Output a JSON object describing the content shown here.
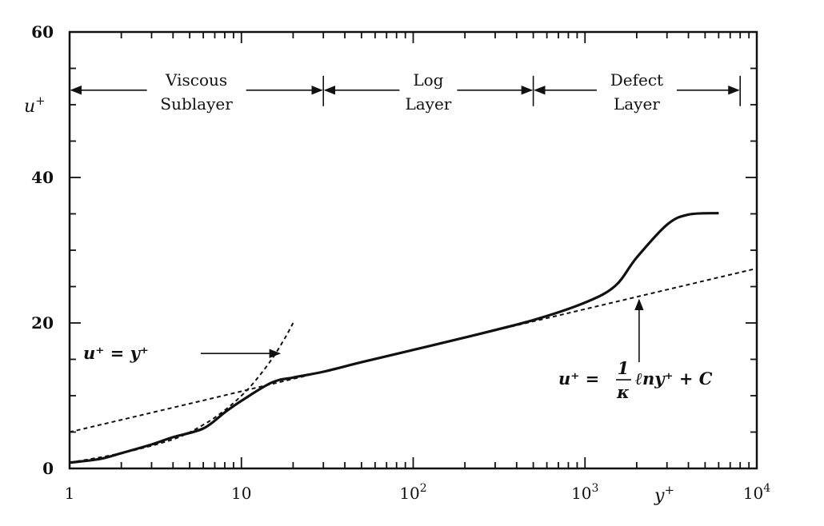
{
  "chart_data": {
    "type": "line",
    "xscale": "log",
    "xlim": [
      1,
      10000
    ],
    "ylim": [
      0,
      60
    ],
    "xlabel": "y+",
    "ylabel": "u+",
    "x_ticks": [
      {
        "value": 1,
        "label": "1"
      },
      {
        "value": 10,
        "label": "10"
      },
      {
        "value": 100,
        "label": "10",
        "exp": "2"
      },
      {
        "value": 1000,
        "label": "10",
        "exp": "3"
      },
      {
        "value": 10000,
        "label": "10",
        "exp": "4"
      }
    ],
    "y_ticks": [
      {
        "value": 0,
        "label": "0"
      },
      {
        "value": 20,
        "label": "20"
      },
      {
        "value": 40,
        "label": "40"
      },
      {
        "value": 60,
        "label": "60"
      }
    ],
    "regions": [
      {
        "label_line1": "Viscous",
        "label_line2": "Sublayer",
        "x_start": 1,
        "x_end": 30
      },
      {
        "label_line1": "Log",
        "label_line2": "Layer",
        "x_start": 30,
        "x_end": 500
      },
      {
        "label_line1": "Defect",
        "label_line2": "Layer",
        "x_start": 500,
        "x_end": 8000
      }
    ],
    "region_label_y": 52,
    "series": [
      {
        "style": "solid",
        "x": [
          1,
          1.5,
          2,
          3,
          4,
          6,
          8,
          10,
          15,
          20,
          30,
          50,
          100,
          200,
          500,
          1000,
          1500,
          2000,
          3000,
          4000,
          6000
        ],
        "y": [
          0.8,
          1.3,
          2.1,
          3.3,
          4.3,
          5.5,
          7.7,
          9.3,
          11.8,
          12.5,
          13.3,
          14.6,
          16.3,
          18.0,
          20.4,
          22.8,
          25.1,
          29.0,
          33.5,
          34.9,
          35.1
        ]
      },
      {
        "style": "dashed",
        "x": [
          1,
          2,
          4,
          6,
          8,
          10,
          12,
          15,
          18,
          20
        ],
        "y": [
          0.8,
          2.1,
          4.0,
          6.0,
          8.0,
          10.0,
          12.0,
          15.0,
          18.0,
          20.0
        ]
      },
      {
        "style": "dashed",
        "x": [
          1,
          10,
          100,
          1000,
          10000
        ],
        "y": [
          5.0,
          10.6,
          16.3,
          21.9,
          27.5
        ]
      }
    ],
    "annotations": [
      {
        "text": "u⁺ = y⁺",
        "x": 1.2,
        "y": 15.8,
        "arrow_from": [
          8,
          15.8
        ],
        "arrow_to": [
          15,
          15.8
        ]
      },
      {
        "prefix": "u⁺ =",
        "numerator": "1",
        "denominator": "κ",
        "suffix": "ℓny⁺ + C",
        "x": 700,
        "y": 12.3,
        "arrow_from": [
          2000,
          14.6
        ],
        "arrow_to": [
          2000,
          23.6
        ]
      }
    ],
    "grid": false
  }
}
